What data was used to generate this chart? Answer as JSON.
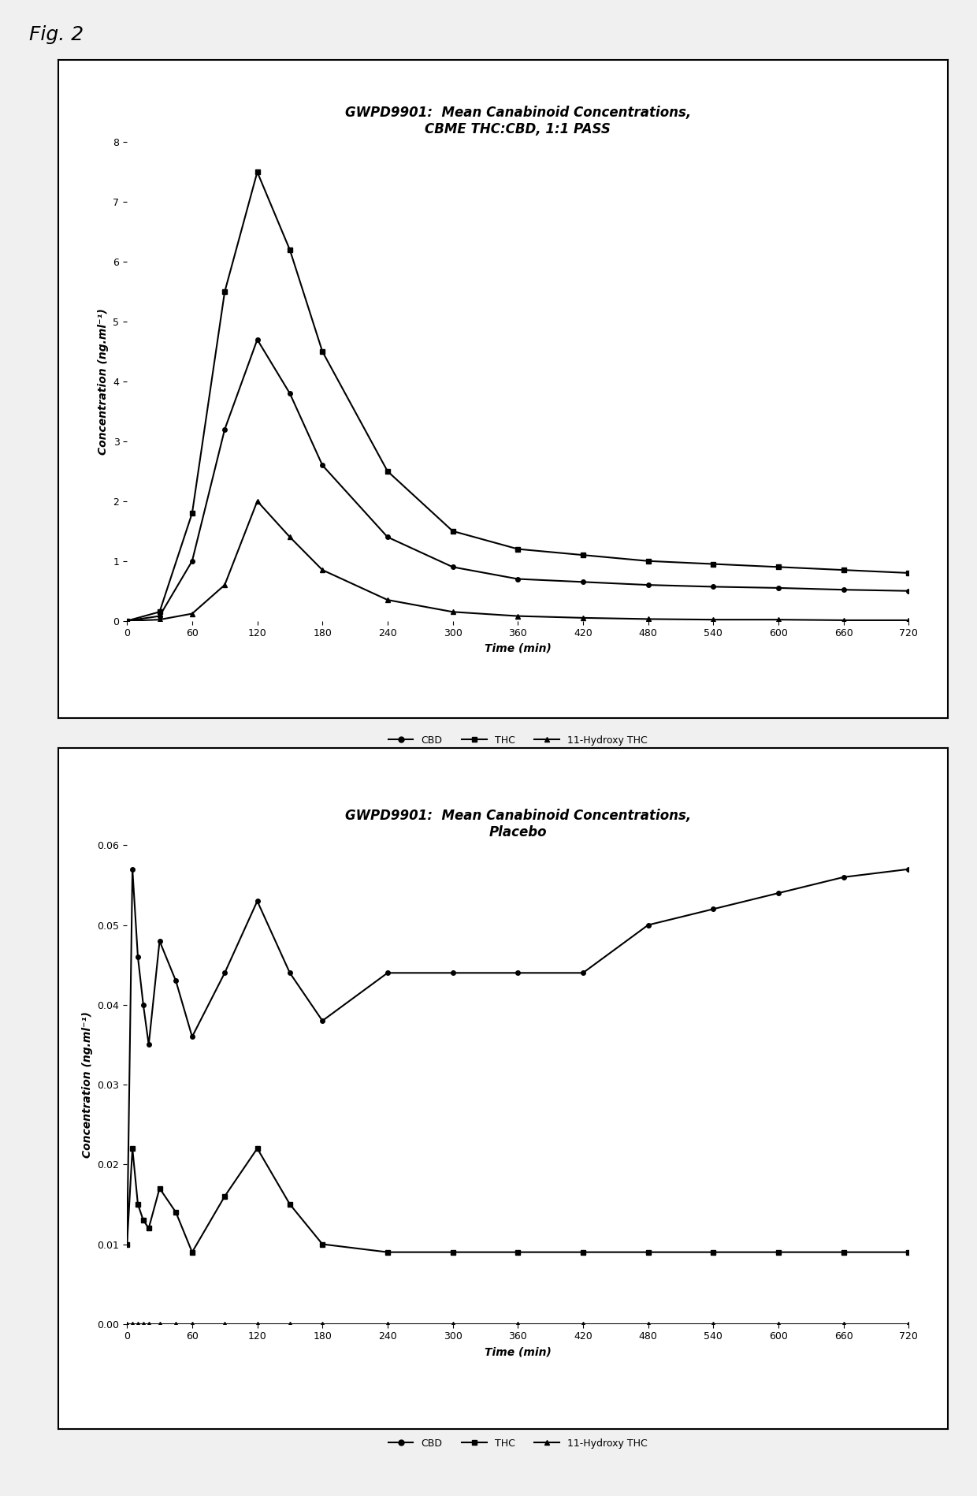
{
  "fig_label": "Fig. 2",
  "plot1": {
    "title": "GWPD9901:  Mean Canabinoid Concentrations,\nCBME THC:CBD, 1:1 PASS",
    "xlabel": "Time (min)",
    "ylabel": "Concentration (ng.ml⁻¹)",
    "ylim": [
      0,
      8
    ],
    "yticks": [
      0,
      1,
      2,
      3,
      4,
      5,
      6,
      7,
      8
    ],
    "xticks": [
      0,
      60,
      120,
      180,
      240,
      300,
      360,
      420,
      480,
      540,
      600,
      660,
      720
    ],
    "thc_x": [
      0,
      30,
      60,
      90,
      120,
      150,
      180,
      240,
      300,
      360,
      420,
      480,
      540,
      600,
      660,
      720
    ],
    "thc_y": [
      0,
      0.15,
      1.8,
      5.5,
      7.5,
      6.2,
      4.5,
      2.5,
      1.5,
      1.2,
      1.1,
      1.0,
      0.95,
      0.9,
      0.85,
      0.8
    ],
    "cbd_x": [
      0,
      30,
      60,
      90,
      120,
      150,
      180,
      240,
      300,
      360,
      420,
      480,
      540,
      600,
      660,
      720
    ],
    "cbd_y": [
      0,
      0.08,
      1.0,
      3.2,
      4.7,
      3.8,
      2.6,
      1.4,
      0.9,
      0.7,
      0.65,
      0.6,
      0.57,
      0.55,
      0.52,
      0.5
    ],
    "hydroxy_x": [
      0,
      30,
      60,
      90,
      120,
      150,
      180,
      240,
      300,
      360,
      420,
      480,
      540,
      600,
      660,
      720
    ],
    "hydroxy_y": [
      0,
      0.02,
      0.12,
      0.6,
      2.0,
      1.4,
      0.85,
      0.35,
      0.15,
      0.08,
      0.05,
      0.03,
      0.02,
      0.02,
      0.01,
      0.01
    ],
    "legend": [
      "CBD",
      "THC",
      "11-Hydroxy THC"
    ]
  },
  "plot2": {
    "title": "GWPD9901:  Mean Canabinoid Concentrations,\nPlacebo",
    "xlabel": "Time (min)",
    "ylabel": "Concentration (ng.ml⁻¹)",
    "ylim": [
      0,
      0.06
    ],
    "yticks": [
      0,
      0.01,
      0.02,
      0.03,
      0.04,
      0.05,
      0.06
    ],
    "xticks": [
      0,
      60,
      120,
      180,
      240,
      300,
      360,
      420,
      480,
      540,
      600,
      660,
      720
    ],
    "cbd_x": [
      0,
      5,
      10,
      15,
      20,
      30,
      45,
      60,
      90,
      120,
      150,
      180,
      240,
      300,
      360,
      420,
      480,
      540,
      600,
      660,
      720
    ],
    "cbd_y": [
      0.01,
      0.057,
      0.046,
      0.04,
      0.035,
      0.048,
      0.043,
      0.036,
      0.044,
      0.053,
      0.044,
      0.038,
      0.044,
      0.044,
      0.044,
      0.044,
      0.05,
      0.052,
      0.054,
      0.056,
      0.057
    ],
    "thc_x": [
      0,
      5,
      10,
      15,
      20,
      30,
      45,
      60,
      90,
      120,
      150,
      180,
      240,
      300,
      360,
      420,
      480,
      540,
      600,
      660,
      720
    ],
    "thc_y": [
      0.01,
      0.022,
      0.015,
      0.013,
      0.012,
      0.017,
      0.014,
      0.009,
      0.016,
      0.022,
      0.015,
      0.01,
      0.009,
      0.009,
      0.009,
      0.009,
      0.009,
      0.009,
      0.009,
      0.009,
      0.009
    ],
    "hydroxy_x": [
      0,
      5,
      10,
      15,
      20,
      30,
      45,
      60,
      90,
      120,
      150,
      180,
      240,
      300,
      360,
      420,
      480,
      540,
      600,
      660,
      720
    ],
    "hydroxy_y": [
      0.0,
      0.0,
      0.0,
      0.0,
      0.0,
      0.0,
      0.0,
      0.0,
      0.0,
      0.0,
      0.0,
      0.0,
      0.0,
      0.0,
      0.0,
      0.0,
      0.0,
      0.0,
      0.0,
      0.0,
      0.0
    ],
    "legend": [
      "CBD",
      "THC",
      "11-Hydroxy THC"
    ]
  },
  "line_color": "#000000",
  "bg_color": "#ffffff",
  "box_color": "#ffffff",
  "title_fontsize": 12,
  "label_fontsize": 10,
  "tick_fontsize": 9,
  "legend_fontsize": 9
}
